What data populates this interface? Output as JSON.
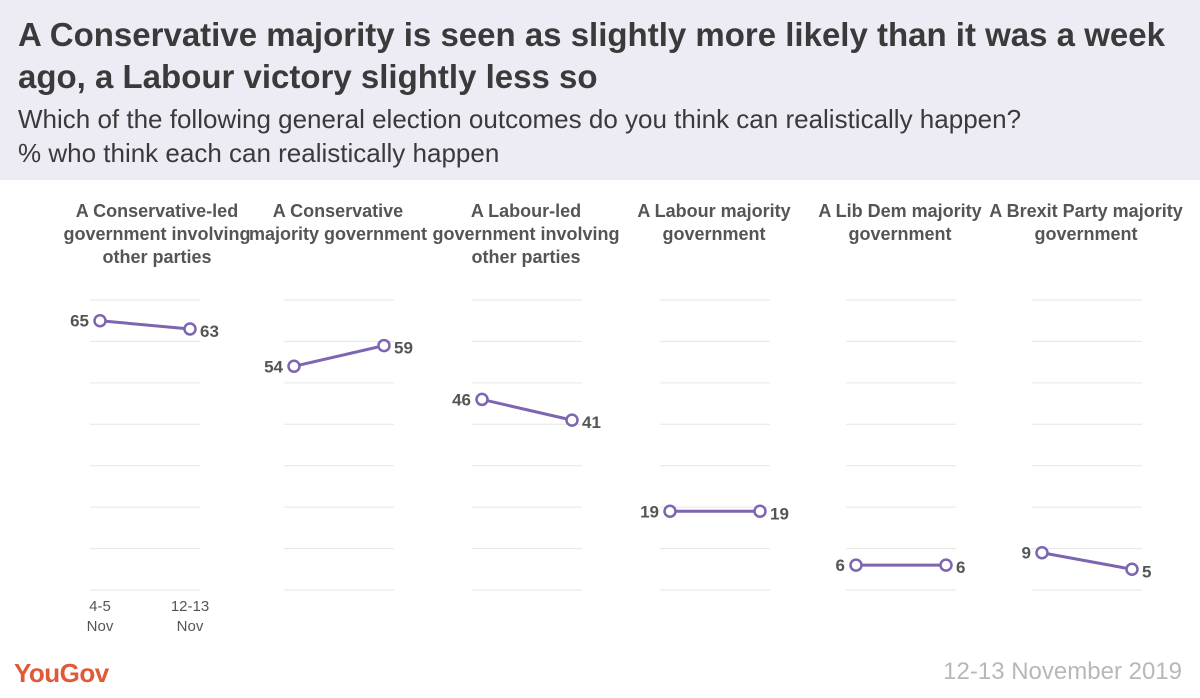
{
  "title": "A Conservative majority is seen as slightly more likely than it was a week ago, a Labour victory slightly less so",
  "subtitle_line1": "Which of the following general election outcomes do you think can realistically happen?",
  "subtitle_line2": "% who think each can realistically happen",
  "brand": "YouGov",
  "fieldwork_date": "12-13 November 2019",
  "colors": {
    "line": "#7d65b0",
    "header_bg": "#edebf4",
    "brand": "#e05a37"
  },
  "chart_data": {
    "type": "line",
    "x": [
      "4-5 Nov",
      "12-13 Nov"
    ],
    "x_ticks": [
      {
        "line1": "4-5",
        "line2": "Nov"
      },
      {
        "line1": "12-13",
        "line2": "Nov"
      }
    ],
    "ylim": [
      0,
      70
    ],
    "grid": true,
    "series": [
      {
        "name": "A Conservative-led government involving other parties",
        "values": [
          65,
          63
        ]
      },
      {
        "name": "A Conservative majority government",
        "values": [
          54,
          59
        ]
      },
      {
        "name": "A Labour-led government involving other parties",
        "values": [
          46,
          41
        ]
      },
      {
        "name": "A Labour majority government",
        "values": [
          19,
          19
        ]
      },
      {
        "name": "A Lib Dem majority government",
        "values": [
          6,
          6
        ]
      },
      {
        "name": "A Brexit Party majority government",
        "values": [
          9,
          5
        ]
      }
    ]
  }
}
